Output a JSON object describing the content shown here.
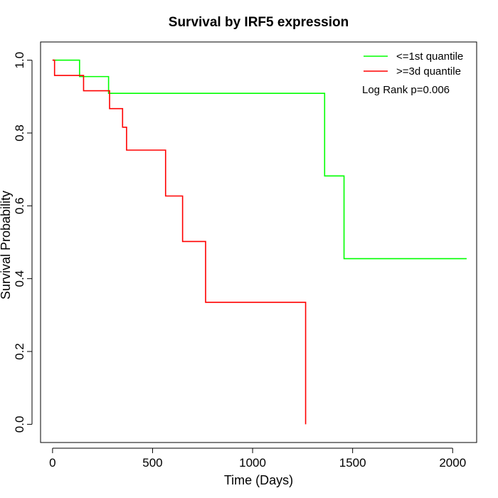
{
  "chart_data": {
    "type": "line",
    "title": "Survival by IRF5 expression",
    "xlabel": "Time (Days)",
    "ylabel": "Survival Probability",
    "xlim": [
      -60,
      2120
    ],
    "ylim": [
      -0.05,
      1.05
    ],
    "x_ticks": [
      0,
      500,
      1000,
      1500,
      2000
    ],
    "x_tick_labels": [
      "0",
      "500",
      "1000",
      "1500",
      "2000"
    ],
    "y_ticks": [
      0.0,
      0.2,
      0.4,
      0.6,
      0.8,
      1.0
    ],
    "y_tick_labels": [
      "0.0",
      "0.2",
      "0.4",
      "0.6",
      "0.8",
      "1.0"
    ],
    "grid": false,
    "legend_position": "top-right",
    "annotation": "Log Rank p=0.006",
    "series": [
      {
        "name": "<=1st quantile",
        "color": "#00ff00",
        "step": true,
        "x": [
          0,
          135,
          280,
          1360,
          1457,
          2070
        ],
        "y": [
          1.0,
          0.955,
          0.909,
          0.682,
          0.455,
          0.455
        ]
      },
      {
        "name": ">=3d quantile",
        "color": "#ff0000",
        "step": true,
        "x": [
          0,
          10,
          155,
          285,
          350,
          370,
          565,
          650,
          765,
          1265
        ],
        "y": [
          1.0,
          0.958,
          0.916,
          0.867,
          0.816,
          0.753,
          0.627,
          0.502,
          0.335,
          0.0
        ]
      }
    ]
  }
}
